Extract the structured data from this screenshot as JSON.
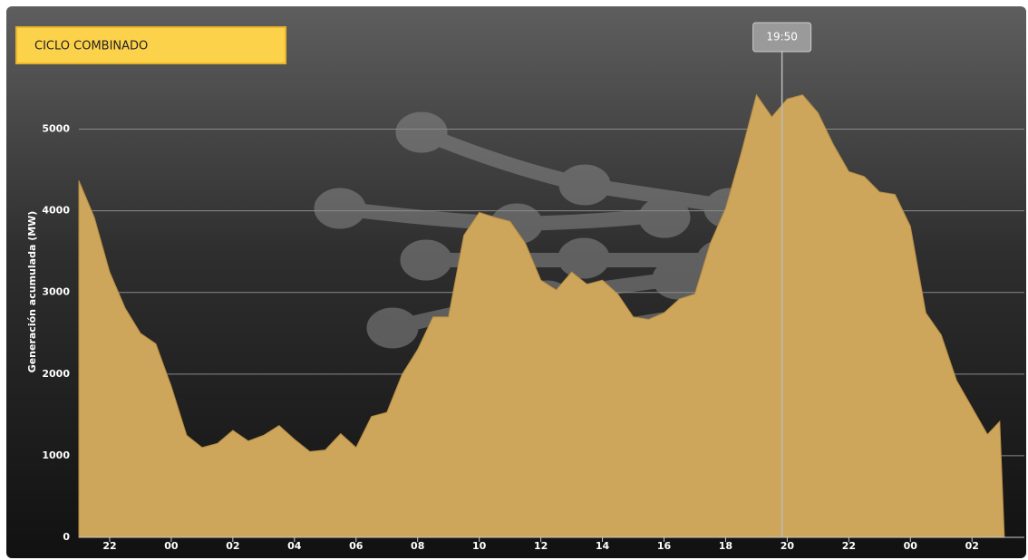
{
  "chart_data": {
    "type": "area",
    "title": "CICLO COMBINADO",
    "y_label": "Generación acumulada (MW)",
    "color": "#cda65c",
    "x": [
      21,
      21.5,
      22,
      22.5,
      23,
      23.5,
      24,
      24.5,
      25,
      25.5,
      26,
      26.5,
      27,
      27.5,
      28,
      28.5,
      29,
      29.5,
      30,
      30.5,
      31,
      31.5,
      32,
      32.5,
      33,
      33.5,
      34,
      34.5,
      35,
      35.5,
      36,
      36.5,
      37,
      37.5,
      38,
      38.5,
      39,
      39.5,
      40,
      40.5,
      41,
      41.5,
      42,
      42.5,
      43,
      43.5,
      44,
      44.5,
      45,
      45.5,
      46,
      46.5,
      47,
      47.5,
      48,
      48.5,
      49,
      49.5,
      50,
      50.5,
      50.9,
      51.05
    ],
    "values": [
      4370,
      3920,
      3250,
      2810,
      2500,
      2370,
      1850,
      1250,
      1100,
      1150,
      1310,
      1180,
      1250,
      1370,
      1200,
      1050,
      1070,
      1270,
      1100,
      1480,
      1530,
      2000,
      2300,
      2700,
      2700,
      3700,
      3980,
      3920,
      3870,
      3600,
      3150,
      3030,
      3250,
      3100,
      3150,
      2980,
      2700,
      2670,
      2750,
      2920,
      2980,
      3600,
      4030,
      4700,
      5420,
      5150,
      5370,
      5420,
      5200,
      4810,
      4480,
      4420,
      4230,
      4200,
      3810,
      2750,
      2480,
      1920,
      1590,
      1260,
      1420,
      0
    ],
    "xlim": [
      21,
      51.7
    ],
    "ylim": [
      0,
      5550
    ],
    "yticks": [
      0,
      1000,
      2000,
      3000,
      4000,
      5000
    ],
    "xticks": [
      {
        "value": 22,
        "label": "22"
      },
      {
        "value": 24,
        "label": "00"
      },
      {
        "value": 26,
        "label": "02"
      },
      {
        "value": 28,
        "label": "04"
      },
      {
        "value": 30,
        "label": "06"
      },
      {
        "value": 32,
        "label": "08"
      },
      {
        "value": 34,
        "label": "10"
      },
      {
        "value": 36,
        "label": "12"
      },
      {
        "value": 38,
        "label": "14"
      },
      {
        "value": 40,
        "label": "16"
      },
      {
        "value": 42,
        "label": "18"
      },
      {
        "value": 44,
        "label": "20"
      },
      {
        "value": 46,
        "label": "22"
      },
      {
        "value": 48,
        "label": "00"
      },
      {
        "value": 50,
        "label": "02"
      }
    ],
    "cursor": {
      "value": 43.83,
      "label": "19:50"
    },
    "grid": true
  }
}
